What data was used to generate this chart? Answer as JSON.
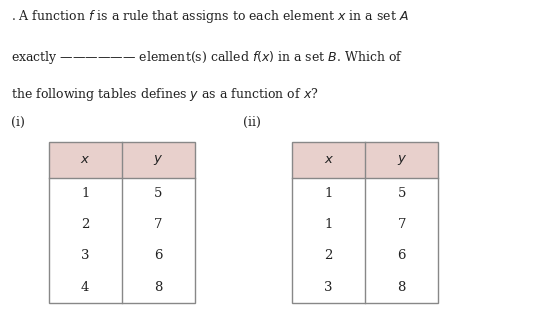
{
  "bg_color": "#ffffff",
  "text_color": "#222222",
  "header_bg": "#e8d0cc",
  "table_border": "#888888",
  "line1": ". A function $f$ is a rule that assigns to each element $x$ in a set $A$",
  "line2": "exactly —————— element(s) called $f(x)$ in a set $B$. Which of",
  "line3": "the following tables defines $y$ as a function of $x$?",
  "label_i": "(i)",
  "label_ii": "(ii)",
  "table1_x": [
    "$x$",
    "1",
    "2",
    "3",
    "4"
  ],
  "table1_y": [
    "$y$",
    "5",
    "7",
    "6",
    "8"
  ],
  "table2_x": [
    "$x$",
    "1",
    "1",
    "2",
    "3"
  ],
  "table2_y": [
    "$y$",
    "5",
    "7",
    "6",
    "8"
  ]
}
